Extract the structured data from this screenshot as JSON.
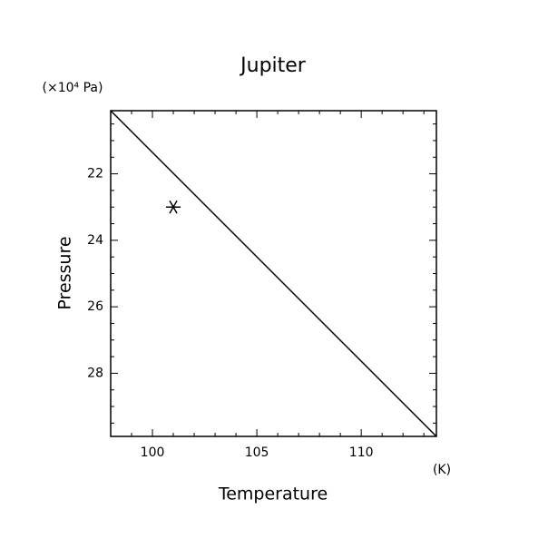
{
  "chart_data": {
    "type": "line",
    "title": "Jupiter",
    "xlabel": "Temperature",
    "ylabel": "Pressure",
    "x_unit": "(K)",
    "y_unit": "(×10⁴ Pa)",
    "xlim": [
      98,
      113.6
    ],
    "ylim": [
      20.1,
      29.9
    ],
    "y_inverted": true,
    "xticks": [
      100,
      105,
      110
    ],
    "yticks": [
      22,
      24,
      26,
      28
    ],
    "xminorticks": [
      99,
      101,
      102,
      103,
      104,
      106,
      107,
      108,
      109,
      111,
      112,
      113
    ],
    "yminorticks": [
      20.5,
      21,
      21.5,
      22.5,
      23,
      23.5,
      24.5,
      25,
      25.5,
      26.5,
      27,
      27.5,
      28.5,
      29,
      29.5
    ],
    "series": [
      {
        "type": "line",
        "color": "#000000",
        "x": [
          98,
          113.6
        ],
        "values": [
          20.1,
          29.9
        ]
      },
      {
        "type": "scatter",
        "marker": "asterisk",
        "color": "#000000",
        "x": [
          101
        ],
        "values": [
          23
        ]
      }
    ]
  }
}
